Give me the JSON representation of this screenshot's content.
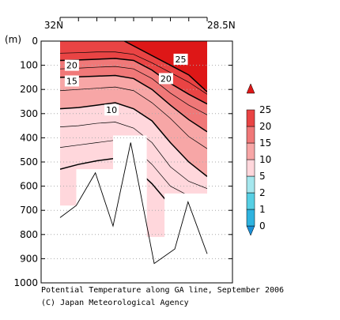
{
  "caption": {
    "title": "Potential Temperature along GA line, September 2006",
    "credit": "(C) Japan Meteorological Agency"
  },
  "chart_data": {
    "type": "heatmap",
    "title": "Potential Temperature along GA line, September 2006",
    "top_left_label": "32N",
    "top_right_label": "28.5N",
    "ylabel": "(m)",
    "y_ticks": [
      0,
      100,
      200,
      300,
      400,
      500,
      600,
      700,
      800,
      900,
      1000
    ],
    "ylim": [
      1000,
      0
    ],
    "grid": "dotted horizontal",
    "colorbar": {
      "levels": [
        "0",
        "1",
        "2",
        "5",
        "10",
        "15",
        "20",
        "25"
      ],
      "colors": [
        "#1a90d8",
        "#2fb3df",
        "#56cfe4",
        "#a5e7ee",
        "#ffd7dc",
        "#f7a6a6",
        "#f07878",
        "#e94444",
        "#de1717"
      ]
    },
    "contour_labels": [
      {
        "text": "25",
        "x": 0.82,
        "depth": 75
      },
      {
        "text": "20",
        "x": 0.08,
        "depth": 100
      },
      {
        "text": "20",
        "x": 0.72,
        "depth": 155
      },
      {
        "text": "15",
        "x": 0.08,
        "depth": 165
      },
      {
        "text": "10",
        "x": 0.35,
        "depth": 285
      }
    ],
    "stations": [
      {
        "x": 0.0,
        "bottom_depth": 680
      },
      {
        "x": 0.11,
        "bottom_depth": 530
      },
      {
        "x": 0.24,
        "bottom_depth": 530
      },
      {
        "x": 0.36,
        "bottom_depth": 390
      },
      {
        "x": 0.48,
        "bottom_depth": 390
      },
      {
        "x": 0.59,
        "bottom_depth": 810
      },
      {
        "x": 0.71,
        "bottom_depth": 630
      },
      {
        "x": 0.82,
        "bottom_depth": 630
      },
      {
        "x": 1.0,
        "bottom_depth": 630
      }
    ],
    "bottom_profile": [
      {
        "x": 0.0,
        "depth": 730
      },
      {
        "x": 0.11,
        "depth": 680
      },
      {
        "x": 0.24,
        "depth": 545
      },
      {
        "x": 0.36,
        "depth": 765
      },
      {
        "x": 0.48,
        "depth": 420
      },
      {
        "x": 0.64,
        "depth": 920
      },
      {
        "x": 0.78,
        "depth": 860
      },
      {
        "x": 0.87,
        "depth": 665
      },
      {
        "x": 1.0,
        "depth": 880
      }
    ],
    "isotherm_profiles": [
      {
        "value": 25,
        "depths": [
          -20,
          -20,
          -20,
          -20,
          20,
          60,
          100,
          140,
          210
        ]
      },
      {
        "value": 22,
        "depths": [
          50,
          48,
          45,
          45,
          55,
          90,
          130,
          170,
          220
        ]
      },
      {
        "value": 20,
        "depths": [
          80,
          78,
          75,
          72,
          80,
          120,
          175,
          220,
          260
        ]
      },
      {
        "value": 18,
        "depths": [
          115,
          112,
          108,
          105,
          115,
          155,
          215,
          265,
          305
        ]
      },
      {
        "value": 15,
        "depths": [
          150,
          148,
          145,
          142,
          155,
          200,
          265,
          325,
          375
        ]
      },
      {
        "value": 13,
        "depths": [
          205,
          200,
          195,
          190,
          205,
          255,
          320,
          395,
          445
        ]
      },
      {
        "value": 10,
        "depths": [
          280,
          275,
          265,
          255,
          280,
          330,
          420,
          500,
          560
        ]
      },
      {
        "value": 8,
        "depths": [
          355,
          350,
          340,
          335,
          360,
          420,
          520,
          580,
          610
        ]
      },
      {
        "value": 6,
        "depths": [
          440,
          430,
          420,
          410,
          440,
          510,
          600,
          640,
          650
        ]
      },
      {
        "value": 5,
        "depths": [
          530,
          510,
          495,
          485,
          520,
          590,
          680,
          700,
          700
        ]
      }
    ]
  }
}
